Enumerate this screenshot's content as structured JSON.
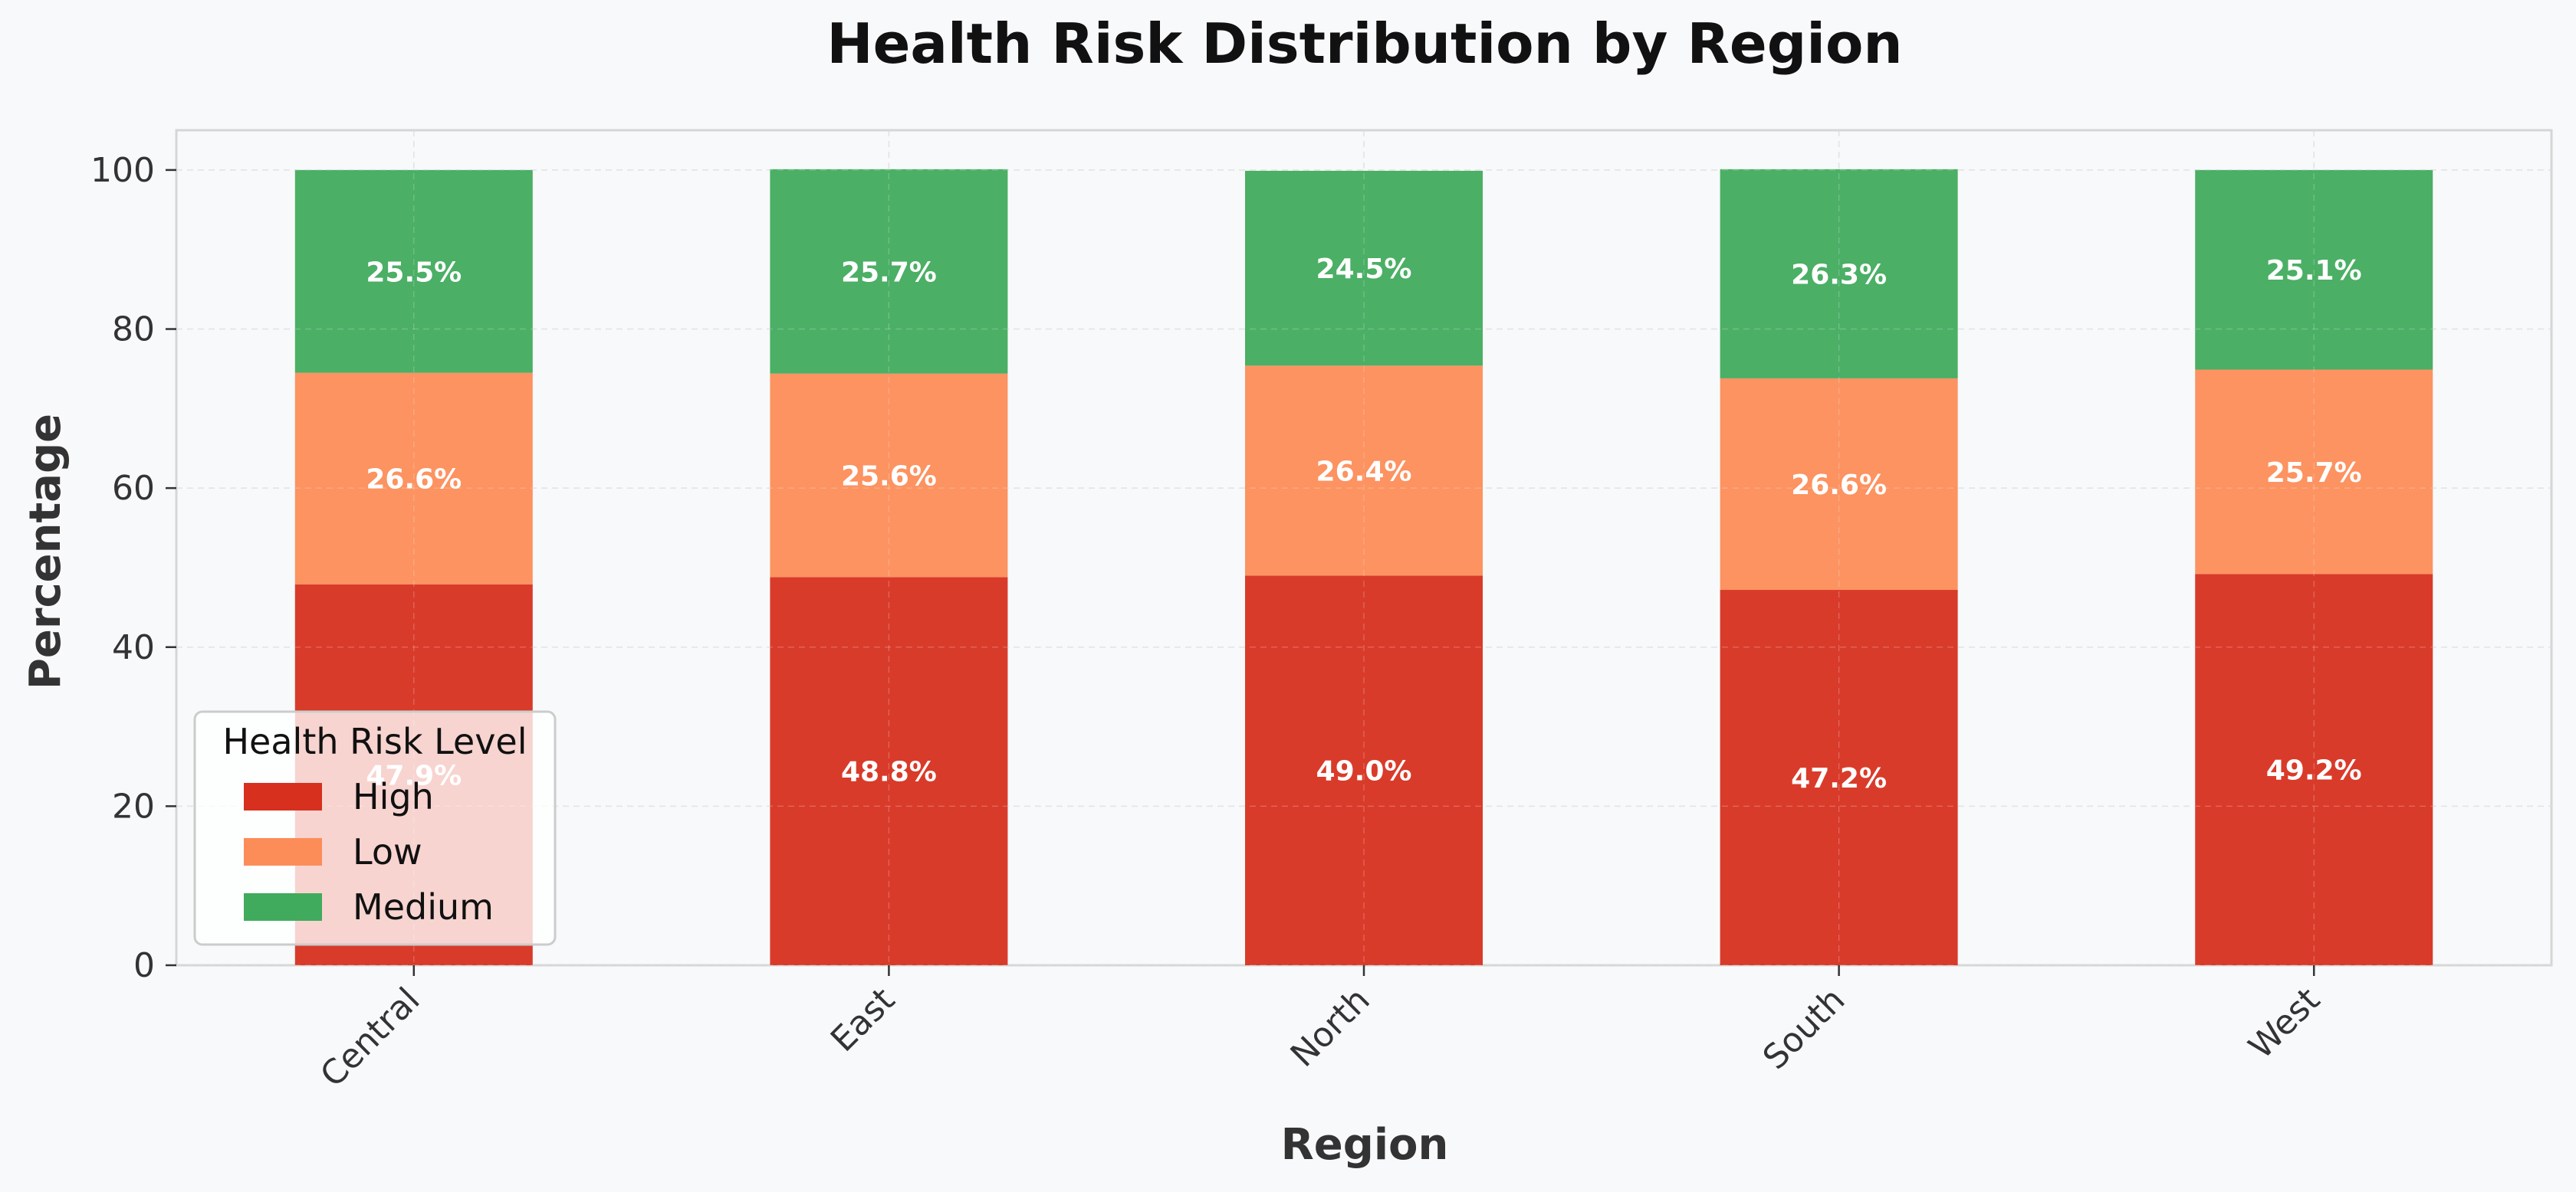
{
  "chart_data": {
    "type": "bar",
    "stacked": true,
    "title": "Health Risk Distribution by Region",
    "xlabel": "Region",
    "ylabel": "Percentage",
    "categories": [
      "Central",
      "East",
      "North",
      "South",
      "West"
    ],
    "ylim": [
      0,
      105
    ],
    "yticks": [
      0,
      20,
      40,
      60,
      80,
      100
    ],
    "grid": true,
    "legend": {
      "title": "Health Risk Level",
      "placement": "lower-left"
    },
    "series": [
      {
        "name": "High",
        "color": "#d7301f",
        "values": [
          47.9,
          48.8,
          49.0,
          47.2,
          49.2
        ],
        "labels": [
          "47.9%",
          "48.8%",
          "49.0%",
          "47.2%",
          "49.2%"
        ]
      },
      {
        "name": "Low",
        "color": "#fc8d59",
        "values": [
          26.6,
          25.6,
          26.4,
          26.6,
          25.7
        ],
        "labels": [
          "26.6%",
          "25.6%",
          "26.4%",
          "26.6%",
          "25.7%"
        ]
      },
      {
        "name": "Medium",
        "color": "#41ab5d",
        "values": [
          25.5,
          25.7,
          24.5,
          26.3,
          25.1
        ],
        "labels": [
          "25.5%",
          "25.7%",
          "24.5%",
          "26.3%",
          "25.1%"
        ]
      }
    ]
  }
}
